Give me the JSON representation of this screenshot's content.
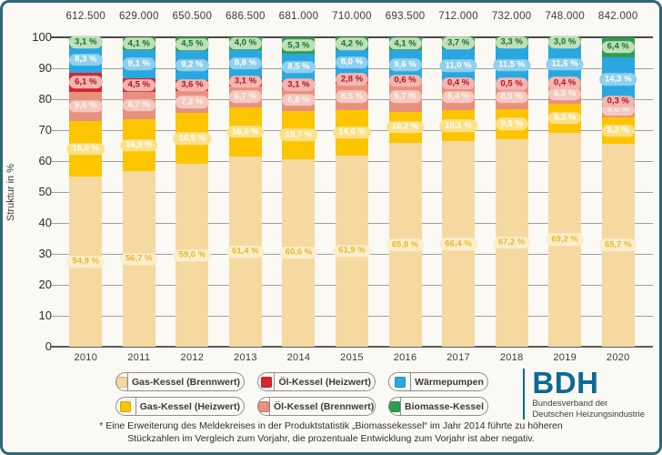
{
  "chart_data": {
    "type": "bar",
    "subtype": "stacked-percent",
    "ylabel": "Struktur in %",
    "ylim": [
      0,
      100
    ],
    "yticks": [
      0,
      10,
      20,
      30,
      40,
      50,
      60,
      70,
      80,
      90,
      100
    ],
    "grid": true,
    "categories": [
      "2010",
      "2011",
      "2012",
      "2013",
      "2014",
      "2015",
      "2016",
      "2017",
      "2018",
      "2019",
      "2020"
    ],
    "totals": [
      "612.500",
      "629.000",
      "650.500",
      "686.500",
      "681.000",
      "710.000",
      "693.500",
      "712.000",
      "732.000",
      "748.000",
      "842.000"
    ],
    "series": [
      {
        "key": "gas_brennwert",
        "name": "Gas-Kessel (Brennwert)",
        "color": "#f6d9a0",
        "label_bg": "#fbeecd",
        "label_color": "#e9b827",
        "values": [
          54.9,
          56.7,
          59.0,
          61.4,
          60.6,
          61.9,
          65.8,
          66.4,
          67.2,
          69.2,
          65.7
        ],
        "labels": [
          "54,9 %",
          "56,7 %",
          "59,0 %",
          "61,4 %",
          "60,6 %",
          "61,9 %",
          "65,8 %",
          "66,4 %",
          "67,2 %",
          "69,2 %",
          "65,7 %"
        ]
      },
      {
        "key": "gas_heizwert",
        "name": "Gas-Kessel (Heizwert)",
        "color": "#fdc400",
        "label_bg": "#fee187",
        "label_color": "#ffffff",
        "values": [
          18.0,
          16.9,
          16.5,
          16.0,
          15.7,
          14.6,
          10.2,
          10.1,
          9.5,
          9.3,
          8.3
        ],
        "labels": [
          "18,0 %",
          "16,9 %",
          "16,5 %",
          "16,0 %",
          "15,7 %",
          "14,6 %",
          "10,2 %",
          "10,1 %",
          "9,5 %",
          "9,3 %",
          "8,3 %"
        ]
      },
      {
        "key": "oel_brennwert",
        "name": "Öl-Kessel (Brennwert)",
        "color": "#e8907e",
        "label_bg": "#f3c9bf",
        "label_color": "#fdf3ef",
        "values": [
          9.6,
          8.7,
          7.2,
          6.7,
          6.8,
          8.5,
          9.7,
          8.4,
          8.0,
          6.5,
          5.0
        ],
        "labels": [
          "9,6 %",
          "8,7 %",
          "7,2 %",
          "6,7 %",
          "6,8 %",
          "8,5 %",
          "9,7 %",
          "8,4 %",
          "8,0 %",
          "6,5 %",
          "5,0 %"
        ]
      },
      {
        "key": "oel_heizwert",
        "name": "Öl-Kessel (Heizwert)",
        "color": "#d6252f",
        "label_bg": "#f2b6b0",
        "label_color": "#bc1022",
        "values": [
          6.1,
          4.5,
          3.6,
          3.1,
          3.1,
          2.8,
          0.6,
          0.4,
          0.5,
          0.4,
          0.3
        ],
        "labels": [
          "6,1 %",
          "4,5 %",
          "3,6 %",
          "3,1 %",
          "3,1 %",
          "2,8 %",
          "0,6 %",
          "0,4 %",
          "0,5 %",
          "0,4 %",
          "0,3 %"
        ]
      },
      {
        "key": "waermepumpen",
        "name": "Wärmepumpen",
        "color": "#2aa7e0",
        "label_bg": "#8ed0ee",
        "label_color": "#ffffff",
        "values": [
          8.3,
          9.1,
          9.2,
          8.8,
          8.5,
          8.0,
          9.6,
          11.0,
          11.5,
          11.6,
          14.3
        ],
        "labels": [
          "8,3 %",
          "9,1 %",
          "9,2 %",
          "8,8 %",
          "8,5 %",
          "8,0 %",
          "9,6 %",
          "11,0 %",
          "11,5 %",
          "11,6 %",
          "14,3 %"
        ]
      },
      {
        "key": "biomasse",
        "name": "Biomasse-Kessel",
        "color": "#2f9d4d",
        "label_bg": "#bfdfb8",
        "label_color": "#15722f",
        "values": [
          3.1,
          4.1,
          4.5,
          4.0,
          5.3,
          4.2,
          4.1,
          3.7,
          3.3,
          3.0,
          6.4
        ],
        "labels": [
          "3,1 %",
          "4,1 %",
          "4,5 %",
          "4,0 %",
          "5,3 %",
          "4,2 %",
          "4,1 %",
          "3,7 %",
          "3,3 %",
          "3,0 %",
          "6,4 %"
        ]
      }
    ]
  },
  "legend": {
    "order": [
      "gas_brennwert",
      "oel_heizwert",
      "waermepumpen",
      "gas_heizwert",
      "oel_brennwert",
      "biomasse"
    ]
  },
  "logo": {
    "acronym": "BDH",
    "line1": "Bundesverband der",
    "line2": "Deutschen Heizungsindustrie"
  },
  "footnote": {
    "line1": "* Eine Erweiterung des Meldekreises in der Produktstatistik „Biomassekessel“ im Jahr 2014 führte zu höheren",
    "line2": "Stückzahlen im Vergleich zum Vorjahr, die prozentuale Entwicklung zum Vorjahr ist aber negativ."
  },
  "frame": {
    "border_color": "#2d6878",
    "background": "#faf9f4"
  }
}
